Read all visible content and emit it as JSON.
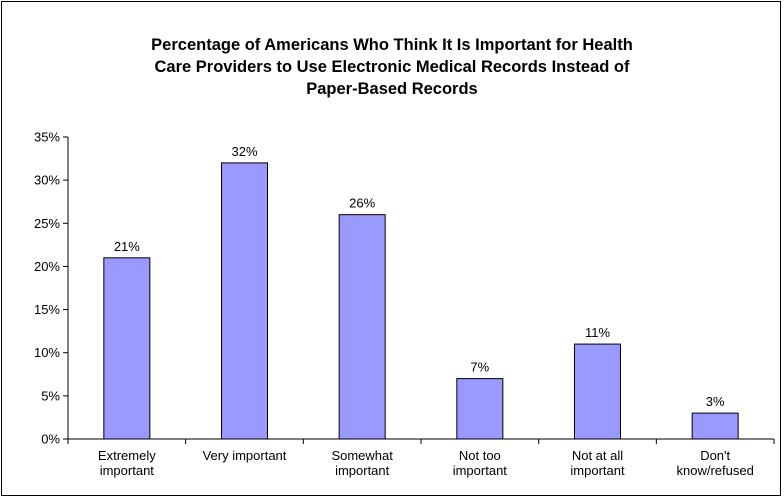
{
  "chart_data": {
    "type": "bar",
    "title_lines": [
      "Percentage of Americans Who Think It Is Important for Health",
      "Care Providers to Use Electronic Medical Records Instead of",
      "Paper-Based Records"
    ],
    "categories": [
      [
        "Extremely",
        "important"
      ],
      [
        "Very important"
      ],
      [
        "Somewhat",
        "important"
      ],
      [
        "Not too",
        "important"
      ],
      [
        "Not at all",
        "important"
      ],
      [
        "Don't",
        "know/refused"
      ]
    ],
    "values": [
      21,
      32,
      26,
      7,
      11,
      3
    ],
    "data_labels": [
      "21%",
      "32%",
      "26%",
      "7%",
      "11%",
      "3%"
    ],
    "ylim": [
      0,
      35
    ],
    "yticks": [
      0,
      5,
      10,
      15,
      20,
      25,
      30,
      35
    ],
    "ytick_labels": [
      "0%",
      "5%",
      "10%",
      "15%",
      "20%",
      "25%",
      "30%",
      "35%"
    ],
    "xlabel": "",
    "ylabel": "",
    "grid": false,
    "legend": "none",
    "colors": {
      "bar_fill": "#9999ff",
      "bar_stroke": "#000000",
      "axis": "#000000"
    }
  }
}
